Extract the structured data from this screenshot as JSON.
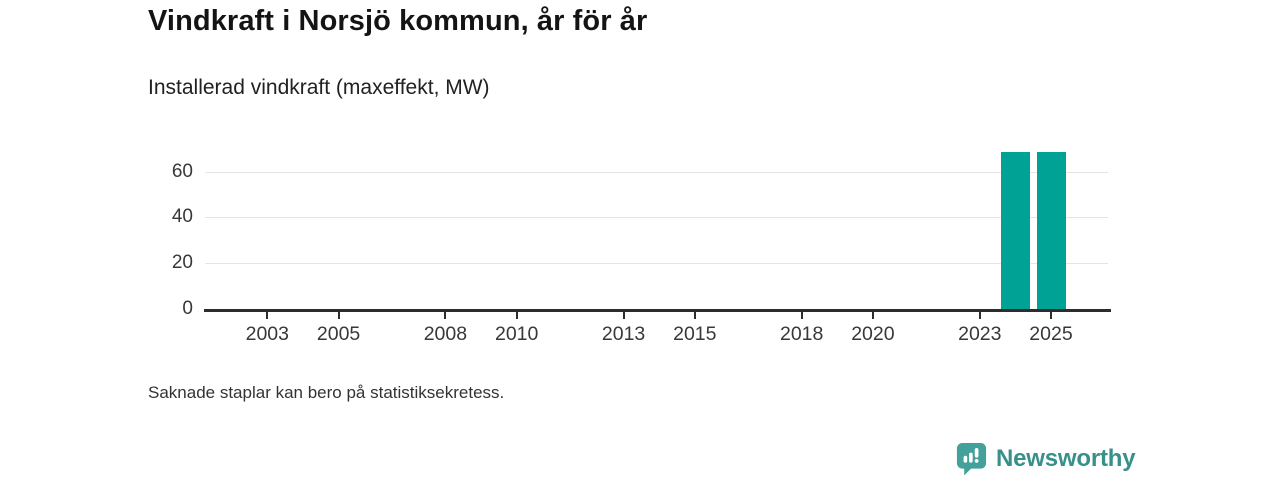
{
  "header": {
    "title": "Vindkraft i Norsjö kommun, år för år",
    "subtitle": "Installerad vindkraft (maxeffekt, MW)"
  },
  "footer": {
    "note": "Saknade staplar kan bero på statistiksekretess."
  },
  "branding": {
    "name": "Newsworthy",
    "icon": "newsworthy-bubble-barchart-icon",
    "text_color": "#37908a",
    "icon_color": "#43a09a"
  },
  "chart_data": {
    "type": "bar",
    "title": "Vindkraft i Norsjö kommun, år för år",
    "subtitle": "Installerad vindkraft (maxeffekt, MW)",
    "xlabel": "",
    "ylabel": "Installerad vindkraft (maxeffekt, MW)",
    "x_tick_labels": [
      "2003",
      "2005",
      "2008",
      "2010",
      "2013",
      "2015",
      "2018",
      "2020",
      "2023",
      "2025"
    ],
    "y_tick_labels": [
      "0",
      "20",
      "40",
      "60"
    ],
    "y_ticks": [
      0,
      20,
      40,
      60
    ],
    "x_ticks": [
      2003,
      2005,
      2008,
      2010,
      2013,
      2015,
      2018,
      2020,
      2023,
      2025
    ],
    "xlim": [
      2001.25,
      2026.6
    ],
    "ylim": [
      0,
      68.5
    ],
    "grid": "horizontal",
    "legend": "none",
    "bar_color": "#00a296",
    "axis_color": "#2d2d2d",
    "gridline_color": "#e4e4e4",
    "bars": [
      {
        "year": 2024,
        "value": 68.5
      },
      {
        "year": 2025,
        "value": 68.5
      }
    ],
    "note": "Saknade staplar kan bero på statistiksekretess."
  }
}
